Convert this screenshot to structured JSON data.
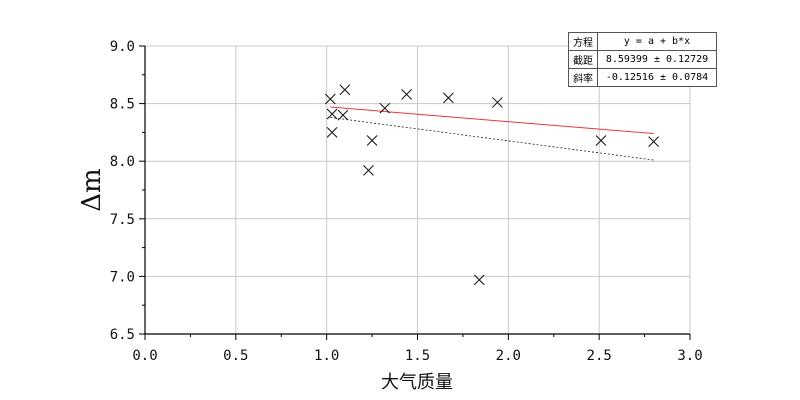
{
  "chart_data": {
    "type": "scatter",
    "xlabel": "大气质量",
    "ylabel": "Δm",
    "xlim": [
      0.0,
      3.0
    ],
    "ylim": [
      6.5,
      9.0
    ],
    "xticks": [
      "0.0",
      "0.5",
      "1.0",
      "1.5",
      "2.0",
      "2.5",
      "3.0"
    ],
    "yticks": [
      "6.5",
      "7.0",
      "7.5",
      "8.0",
      "8.5",
      "9.0"
    ],
    "grid": true,
    "points": [
      {
        "x": 1.02,
        "y": 8.54
      },
      {
        "x": 1.03,
        "y": 8.41
      },
      {
        "x": 1.03,
        "y": 8.25
      },
      {
        "x": 1.09,
        "y": 8.4
      },
      {
        "x": 1.1,
        "y": 8.62
      },
      {
        "x": 1.23,
        "y": 7.92
      },
      {
        "x": 1.25,
        "y": 8.18
      },
      {
        "x": 1.32,
        "y": 8.46
      },
      {
        "x": 1.44,
        "y": 8.58
      },
      {
        "x": 1.67,
        "y": 8.55
      },
      {
        "x": 1.84,
        "y": 6.97
      },
      {
        "x": 1.94,
        "y": 8.51
      },
      {
        "x": 2.51,
        "y": 8.18
      },
      {
        "x": 2.8,
        "y": 8.17
      }
    ],
    "fit_line": {
      "color": "#e8383d",
      "x": [
        1.02,
        2.8
      ],
      "y": [
        8.47,
        8.24
      ]
    },
    "dashed_line": {
      "color": "#222222",
      "x": [
        1.02,
        2.8
      ],
      "y": [
        8.38,
        8.01
      ]
    },
    "fit_table": {
      "rows": [
        {
          "key": "方程",
          "value": "y = a + b*x"
        },
        {
          "key": "截距",
          "value": "8.59399 ± 0.12729"
        },
        {
          "key": "斜率",
          "value": "-0.12516 ± 0.0784"
        }
      ]
    }
  }
}
